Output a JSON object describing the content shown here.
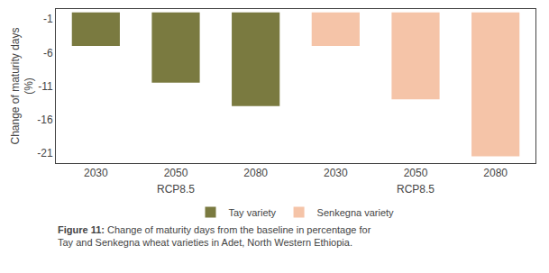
{
  "chart_data": {
    "type": "bar",
    "ylabel": "Change of maturity days\n(%)",
    "categories": [
      "2030",
      "2050",
      "2080",
      "2030",
      "2050",
      "2080"
    ],
    "series": [
      {
        "name": "Tay variety",
        "color": "#7a7a40",
        "values": [
          -5.0,
          -10.5,
          -14.0,
          null,
          null,
          null
        ]
      },
      {
        "name": "Senkegna variety",
        "color": "#f5c4a8",
        "values": [
          null,
          null,
          null,
          -5.0,
          -13.0,
          -21.5
        ]
      }
    ],
    "ylim": [
      -22.5,
      0.5
    ],
    "yticks": [
      -1,
      -6,
      -11,
      -16,
      -21
    ],
    "grid": false,
    "legend": "bottom",
    "annotations": [
      {
        "text": "RCP8.5",
        "x": 1
      },
      {
        "text": "RCP8.5",
        "x": 4
      }
    ],
    "caption": {
      "bold": "Figure 11:",
      "text": " Change of maturity days from the baseline in percentage for\nTay and Senkegna wheat varieties in Adet, North Western Ethiopia."
    }
  }
}
